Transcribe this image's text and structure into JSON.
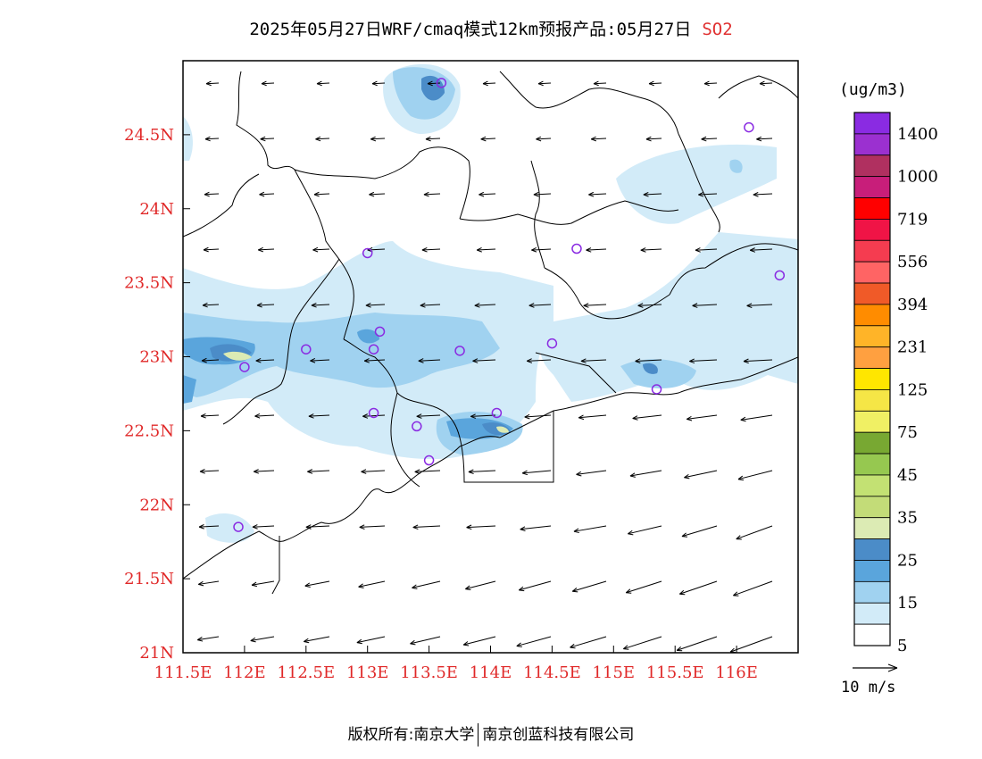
{
  "title": {
    "text": "2025年05月27日WRF/cmaq模式12km预报产品:05月27日",
    "pollutant": "SO2"
  },
  "colorbar": {
    "unit": "(ug/m3)",
    "labels": [
      "1400",
      "1000",
      "719",
      "556",
      "394",
      "231",
      "125",
      "75",
      "45",
      "35",
      "25",
      "15",
      "5"
    ],
    "colors_top_to_bottom": [
      "#8a2be2",
      "#9b30d0",
      "#b03060",
      "#c81e7a",
      "#ff0000",
      "#f01446",
      "#f53c50",
      "#ff6464",
      "#f05a28",
      "#ff8c00",
      "#ffb428",
      "#ffa040",
      "#ffe600",
      "#f5e646",
      "#f0f064",
      "#78a832",
      "#96c850",
      "#c3e173",
      "#c3dc78",
      "#dcebb4",
      "#4b8cc8",
      "#5aa5dc",
      "#a0d2f0",
      "#d2ebf8",
      "#ffffff"
    ]
  },
  "vector_reference": {
    "label": "10 m/s"
  },
  "axes": {
    "x_labels": [
      "111.5E",
      "112E",
      "112.5E",
      "113E",
      "113.5E",
      "114E",
      "114.5E",
      "115E",
      "115.5E",
      "116E"
    ],
    "y_labels": [
      "24.5N",
      "24N",
      "23.5N",
      "23N",
      "22.5N",
      "22N",
      "21.5N",
      "21N"
    ],
    "x_range": [
      111.5,
      116.5
    ],
    "y_range": [
      21.0,
      25.0
    ]
  },
  "stations": [
    {
      "lon": 113.6,
      "lat": 24.85
    },
    {
      "lon": 116.1,
      "lat": 24.55
    },
    {
      "lon": 113.0,
      "lat": 23.7
    },
    {
      "lon": 114.7,
      "lat": 23.73
    },
    {
      "lon": 116.35,
      "lat": 23.55
    },
    {
      "lon": 112.5,
      "lat": 23.05
    },
    {
      "lon": 113.1,
      "lat": 23.17
    },
    {
      "lon": 113.05,
      "lat": 23.05
    },
    {
      "lon": 113.75,
      "lat": 23.04
    },
    {
      "lon": 114.5,
      "lat": 23.09
    },
    {
      "lon": 112.0,
      "lat": 22.93
    },
    {
      "lon": 113.05,
      "lat": 22.62
    },
    {
      "lon": 113.4,
      "lat": 22.53
    },
    {
      "lon": 114.05,
      "lat": 22.62
    },
    {
      "lon": 113.5,
      "lat": 22.3
    },
    {
      "lon": 111.95,
      "lat": 21.85
    },
    {
      "lon": 115.35,
      "lat": 22.78
    }
  ],
  "footer": {
    "left": "版权所有:南京大学",
    "right": "南京创蓝科技有限公司"
  }
}
